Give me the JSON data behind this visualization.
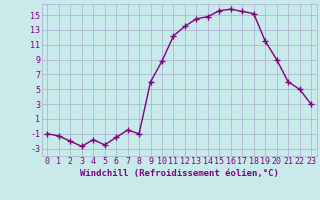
{
  "x": [
    0,
    1,
    2,
    3,
    4,
    5,
    6,
    7,
    8,
    9,
    10,
    11,
    12,
    13,
    14,
    15,
    16,
    17,
    18,
    19,
    20,
    21,
    22,
    23
  ],
  "y": [
    -1.0,
    -1.3,
    -2.0,
    -2.7,
    -1.8,
    -2.5,
    -1.5,
    -0.5,
    -1.0,
    6.0,
    8.8,
    12.2,
    13.5,
    14.5,
    14.8,
    15.6,
    15.8,
    15.5,
    15.2,
    11.5,
    9.0,
    6.0,
    5.0,
    3.0
  ],
  "line_color": "#800080",
  "marker": "+",
  "marker_size": 4,
  "bg_color": "#c8eaea",
  "grid_color": "#aaaacc",
  "xlabel": "Windchill (Refroidissement éolien,°C)",
  "xlabel_fontsize": 6.5,
  "tick_fontsize": 6,
  "yticks": [
    -3,
    -1,
    1,
    3,
    5,
    7,
    9,
    11,
    13,
    15
  ],
  "ylim": [
    -4.0,
    16.5
  ],
  "xlim": [
    -0.5,
    23.5
  ],
  "linewidth": 1.0
}
